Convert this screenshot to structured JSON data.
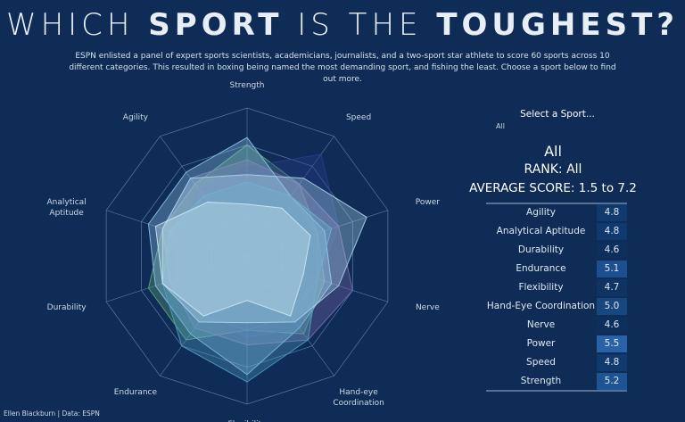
{
  "header": {
    "title_parts": [
      "WHICH ",
      "SPORT",
      " IS THE ",
      "TOUGHEST?"
    ],
    "intro": "ESPN enlisted a panel of expert sports scientists, academicians, journalists, and a two-sport star athlete to score 60 sports across 10 different categories. This resulted in  boxing being named  the most demanding sport, and fishing the least. Choose a sport below to find out more."
  },
  "chart_data": {
    "type": "radar",
    "axes": [
      "Strength",
      "Speed",
      "Power",
      "Nerve",
      "Hand-eye Coordination",
      "Flexibility",
      "Endurance",
      "Durability",
      "Analytical Aptitude",
      "Agility"
    ],
    "rlim": [
      0,
      10
    ],
    "rticks": [
      2.5,
      5,
      7.5,
      10
    ],
    "series": [
      {
        "color": "#5fa87a",
        "values": [
          7.5,
          6,
          5,
          5.5,
          6.5,
          5,
          7,
          7,
          6,
          6
        ]
      },
      {
        "color": "#2a3d8a",
        "values": [
          6,
          8.5,
          6.5,
          5,
          6,
          5.5,
          5,
          6,
          5,
          5.5
        ]
      },
      {
        "color": "#7a6aa8",
        "values": [
          6.5,
          6,
          6.5,
          7.5,
          7,
          6,
          6,
          5.5,
          6,
          6.5
        ]
      },
      {
        "color": "#8fc4e8",
        "values": [
          8,
          5,
          5.5,
          6,
          6,
          8,
          6.5,
          6.5,
          7,
          7
        ]
      },
      {
        "color": "#4f9fc0",
        "values": [
          5,
          5,
          6,
          5,
          7,
          8.5,
          7.5,
          6,
          5.5,
          5
        ]
      },
      {
        "color": "#a9d6ea",
        "values": [
          5.5,
          6.5,
          8.5,
          6.5,
          5.5,
          4.5,
          5.5,
          6,
          6,
          6.5
        ]
      },
      {
        "color": "#cfe8f4",
        "values": [
          3.5,
          4,
          4.5,
          4,
          5,
          3,
          5,
          6,
          6.5,
          4.5
        ]
      }
    ]
  },
  "selector": {
    "label": "Select a Sport...",
    "value": "All"
  },
  "summary": {
    "sport": "All",
    "rank": "RANK: All",
    "average": "AVERAGE SCORE: 1.5 to 7.2"
  },
  "table": {
    "rows": [
      {
        "label": "Agility",
        "score": "4.8",
        "color": "#103a6e"
      },
      {
        "label": "Analytical Aptitude",
        "score": "4.8",
        "color": "#103a6e"
      },
      {
        "label": "Durability",
        "score": "4.6",
        "color": "#0d2f5c"
      },
      {
        "label": "Endurance",
        "score": "5.1",
        "color": "#1b4f8e"
      },
      {
        "label": "Flexibility",
        "score": "4.7",
        "color": "#0f3464"
      },
      {
        "label": "Hand-Eye Coordination",
        "score": "5.0",
        "color": "#17477f"
      },
      {
        "label": "Nerve",
        "score": "4.6",
        "color": "#0d2f5c"
      },
      {
        "label": "Power",
        "score": "5.5",
        "color": "#2a62a8"
      },
      {
        "label": "Speed",
        "score": "4.8",
        "color": "#103a6e"
      },
      {
        "label": "Strength",
        "score": "5.2",
        "color": "#1d5496"
      }
    ]
  },
  "footer": "Ellen Blackburn | Data: ESPN"
}
